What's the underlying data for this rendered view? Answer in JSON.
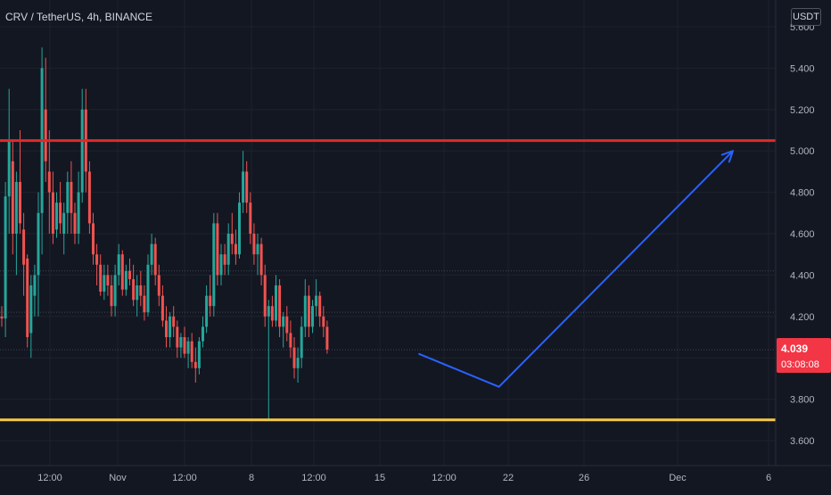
{
  "header": {
    "symbol_title": "CRV / TetherUS, 4h, BINANCE",
    "currency_badge": "USDT"
  },
  "colors": {
    "background": "#131722",
    "grid": "#1e222d",
    "up_candle": "#26a69a",
    "down_candle": "#ef5350",
    "axis_text": "#b2b5be",
    "resistance_line": "#e02a2a",
    "support_line": "#f7c948",
    "projection_arrow": "#2962ff",
    "price_label_bg": "#f23645"
  },
  "current_price": {
    "price": "4.039",
    "countdown": "03:08:08",
    "value": 4.039
  },
  "chart_data": {
    "type": "candlestick",
    "title": "CRV / TetherUS, 4h, BINANCE",
    "timeframe": "4h",
    "currency": "USDT",
    "y_ticks": [
      "5.600",
      "5.400",
      "5.200",
      "5.000",
      "4.800",
      "4.600",
      "4.400",
      "4.200",
      "4.000",
      "3.800",
      "3.600"
    ],
    "x_ticks": [
      "12:00",
      "Nov",
      "12:00",
      "8",
      "12:00",
      "15",
      "12:00",
      "22",
      "26",
      "Dec",
      "6"
    ],
    "grid": true,
    "horizontal_levels": [
      {
        "name": "resistance",
        "price": 5.05
      },
      {
        "name": "support",
        "price": 3.7
      }
    ],
    "reference_lines": [
      4.42,
      4.22,
      4.039
    ],
    "projection": [
      {
        "label": "start",
        "bar": 114,
        "price": 4.02
      },
      {
        "label": "low",
        "bar": 136,
        "price": 3.86
      },
      {
        "label": "target",
        "bar": 200,
        "price": 5.0
      }
    ],
    "candles": [
      [
        4.2,
        4.25,
        4.15,
        4.19
      ],
      [
        4.19,
        4.85,
        4.1,
        4.78
      ],
      [
        4.78,
        5.3,
        4.6,
        5.05
      ],
      [
        4.95,
        5.05,
        4.5,
        4.6
      ],
      [
        4.6,
        4.9,
        4.4,
        4.85
      ],
      [
        4.85,
        5.1,
        4.6,
        4.65
      ],
      [
        4.62,
        4.7,
        4.3,
        4.45
      ],
      [
        4.48,
        4.5,
        4.05,
        4.1
      ],
      [
        4.12,
        4.4,
        4.0,
        4.35
      ],
      [
        4.3,
        4.45,
        4.2,
        4.4
      ],
      [
        4.4,
        4.8,
        4.2,
        4.7
      ],
      [
        4.7,
        5.5,
        4.5,
        5.4
      ],
      [
        5.2,
        5.45,
        4.85,
        4.95
      ],
      [
        4.9,
        5.1,
        4.6,
        4.8
      ],
      [
        4.8,
        4.9,
        4.55,
        4.6
      ],
      [
        4.62,
        4.8,
        4.58,
        4.75
      ],
      [
        4.75,
        4.85,
        4.6,
        4.65
      ],
      [
        4.6,
        4.75,
        4.5,
        4.7
      ],
      [
        4.7,
        4.9,
        4.6,
        4.85
      ],
      [
        4.85,
        4.95,
        4.6,
        4.7
      ],
      [
        4.7,
        4.75,
        4.55,
        4.6
      ],
      [
        4.6,
        4.9,
        4.55,
        4.8
      ],
      [
        4.8,
        5.3,
        4.75,
        5.2
      ],
      [
        5.2,
        5.3,
        4.8,
        4.9
      ],
      [
        4.9,
        4.95,
        4.6,
        4.65
      ],
      [
        4.65,
        4.7,
        4.45,
        4.5
      ],
      [
        4.5,
        4.55,
        4.35,
        4.45
      ],
      [
        4.45,
        4.5,
        4.3,
        4.32
      ],
      [
        4.32,
        4.45,
        4.28,
        4.4
      ],
      [
        4.4,
        4.45,
        4.3,
        4.35
      ],
      [
        4.35,
        4.4,
        4.2,
        4.25
      ],
      [
        4.25,
        4.45,
        4.2,
        4.4
      ],
      [
        4.4,
        4.55,
        4.35,
        4.5
      ],
      [
        4.5,
        4.52,
        4.3,
        4.33
      ],
      [
        4.33,
        4.45,
        4.3,
        4.42
      ],
      [
        4.42,
        4.48,
        4.35,
        4.38
      ],
      [
        4.38,
        4.45,
        4.25,
        4.28
      ],
      [
        4.28,
        4.4,
        4.2,
        4.35
      ],
      [
        4.35,
        4.42,
        4.25,
        4.3
      ],
      [
        4.3,
        4.35,
        4.18,
        4.22
      ],
      [
        4.22,
        4.5,
        4.2,
        4.45
      ],
      [
        4.45,
        4.6,
        4.4,
        4.55
      ],
      [
        4.55,
        4.58,
        4.35,
        4.4
      ],
      [
        4.4,
        4.45,
        4.25,
        4.3
      ],
      [
        4.3,
        4.35,
        4.15,
        4.18
      ],
      [
        4.18,
        4.25,
        4.05,
        4.1
      ],
      [
        4.1,
        4.22,
        4.05,
        4.2
      ],
      [
        4.2,
        4.25,
        4.1,
        4.15
      ],
      [
        4.15,
        4.18,
        4.0,
        4.05
      ],
      [
        4.05,
        4.12,
        4.0,
        4.1
      ],
      [
        4.1,
        4.15,
        4.0,
        4.02
      ],
      [
        4.02,
        4.1,
        3.95,
        4.08
      ],
      [
        4.08,
        4.12,
        3.95,
        3.98
      ],
      [
        3.98,
        4.05,
        3.88,
        3.95
      ],
      [
        3.95,
        4.1,
        3.92,
        4.08
      ],
      [
        4.08,
        4.2,
        4.05,
        4.15
      ],
      [
        4.15,
        4.35,
        4.12,
        4.3
      ],
      [
        4.3,
        4.4,
        4.2,
        4.25
      ],
      [
        4.25,
        4.7,
        4.2,
        4.65
      ],
      [
        4.65,
        4.7,
        4.35,
        4.4
      ],
      [
        4.4,
        4.55,
        4.35,
        4.5
      ],
      [
        4.5,
        4.55,
        4.4,
        4.45
      ],
      [
        4.45,
        4.65,
        4.4,
        4.6
      ],
      [
        4.6,
        4.7,
        4.5,
        4.55
      ],
      [
        4.55,
        4.62,
        4.45,
        4.5
      ],
      [
        4.5,
        4.8,
        4.48,
        4.75
      ],
      [
        4.75,
        5.0,
        4.7,
        4.9
      ],
      [
        4.9,
        4.95,
        4.7,
        4.75
      ],
      [
        4.75,
        4.8,
        4.55,
        4.6
      ],
      [
        4.6,
        4.65,
        4.45,
        4.5
      ],
      [
        4.5,
        4.6,
        4.4,
        4.55
      ],
      [
        4.55,
        4.58,
        4.35,
        4.4
      ],
      [
        4.4,
        4.45,
        4.15,
        4.2
      ],
      [
        4.2,
        4.28,
        3.7,
        4.25
      ],
      [
        4.25,
        4.3,
        4.15,
        4.18
      ],
      [
        4.18,
        4.4,
        4.15,
        4.35
      ],
      [
        4.35,
        4.38,
        4.1,
        4.15
      ],
      [
        4.15,
        4.22,
        4.05,
        4.2
      ],
      [
        4.2,
        4.25,
        4.08,
        4.12
      ],
      [
        4.12,
        4.18,
        4.0,
        4.05
      ],
      [
        4.05,
        4.1,
        3.9,
        3.95
      ],
      [
        3.95,
        4.05,
        3.88,
        4.0
      ],
      [
        4.0,
        4.2,
        3.95,
        4.15
      ],
      [
        4.15,
        4.38,
        4.1,
        4.3
      ],
      [
        4.3,
        4.35,
        4.1,
        4.15
      ],
      [
        4.15,
        4.28,
        4.12,
        4.25
      ],
      [
        4.25,
        4.38,
        4.2,
        4.3
      ],
      [
        4.3,
        4.32,
        4.15,
        4.2
      ],
      [
        4.2,
        4.25,
        4.1,
        4.15
      ],
      [
        4.15,
        4.18,
        4.02,
        4.04
      ]
    ]
  }
}
